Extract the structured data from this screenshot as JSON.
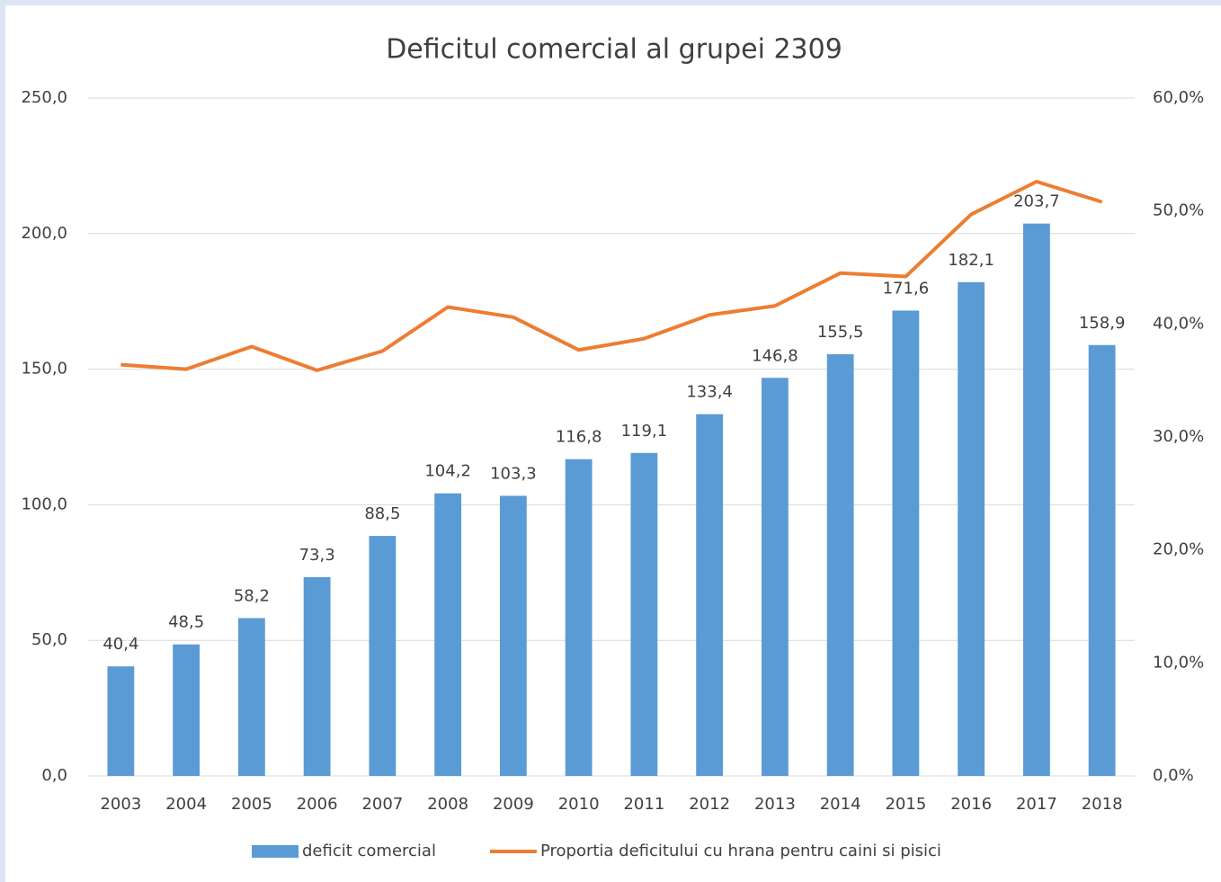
{
  "chart_data": {
    "type": "bar",
    "title": "Deficitul comercial al grupei 2309",
    "categories": [
      "2003",
      "2004",
      "2005",
      "2006",
      "2007",
      "2008",
      "2009",
      "2010",
      "2011",
      "2012",
      "2013",
      "2014",
      "2015",
      "2016",
      "2017",
      "2018"
    ],
    "series": [
      {
        "name": "deficit comercial",
        "type": "bar",
        "color": "#5b9bd5",
        "values": [
          40.4,
          48.5,
          58.2,
          73.3,
          88.5,
          104.2,
          103.3,
          116.8,
          119.1,
          133.4,
          146.8,
          155.5,
          171.6,
          182.1,
          203.7,
          158.9
        ],
        "value_labels": [
          "40,4",
          "48,5",
          "58,2",
          "73,3",
          "88,5",
          "104,2",
          "103,3",
          "116,8",
          "119,1",
          "133,4",
          "146,8",
          "155,5",
          "171,6",
          "182,1",
          "203,7",
          "158,9"
        ]
      },
      {
        "name": "Proportia deficitului cu hrana pentru caini si pisici",
        "type": "line",
        "axis": "y2",
        "color": "#ed7d31",
        "values": [
          36.4,
          36.0,
          38.0,
          35.9,
          37.6,
          41.5,
          40.6,
          37.7,
          38.7,
          40.8,
          41.6,
          44.5,
          44.2,
          49.7,
          52.6,
          50.8
        ]
      }
    ],
    "ylim": [
      0,
      250
    ],
    "yticks": [
      {
        "value": 0,
        "label": "0,0"
      },
      {
        "value": 50,
        "label": "50,0"
      },
      {
        "value": 100,
        "label": "100,0"
      },
      {
        "value": 150,
        "label": "150,0"
      },
      {
        "value": 200,
        "label": "200,0"
      },
      {
        "value": 250,
        "label": "250,0"
      }
    ],
    "y2lim": [
      0,
      60
    ],
    "y2ticks": [
      {
        "value": 0,
        "label": "0,0%"
      },
      {
        "value": 10,
        "label": "10,0%"
      },
      {
        "value": 20,
        "label": "20,0%"
      },
      {
        "value": 30,
        "label": "30,0%"
      },
      {
        "value": 40,
        "label": "40,0%"
      },
      {
        "value": 50,
        "label": "50,0%"
      },
      {
        "value": 60,
        "label": "60,0%"
      }
    ],
    "grid": true,
    "legend": "bottom"
  }
}
